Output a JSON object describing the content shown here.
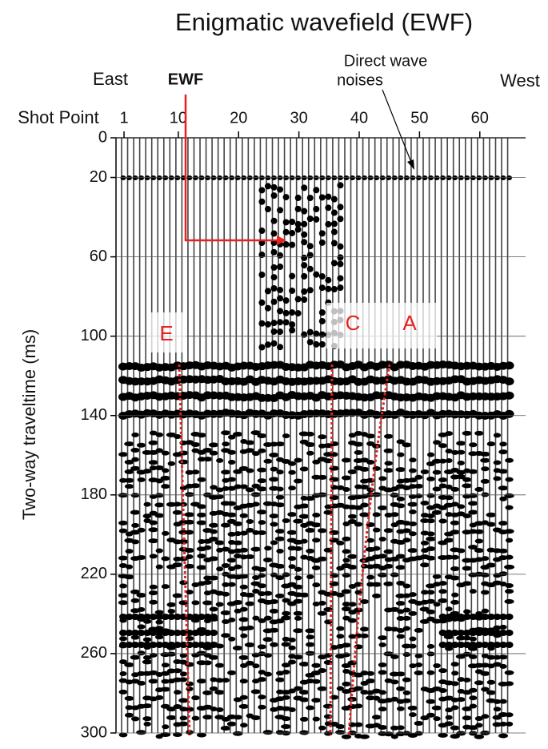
{
  "chart_data": {
    "type": "seismic",
    "title": "Enigmatic wavefield (EWF)",
    "x_label": "Shot Point",
    "y_label": "Two-way traveltime (ms)",
    "xlim": [
      0,
      66
    ],
    "xticks": [
      1,
      10,
      20,
      30,
      40,
      50,
      60
    ],
    "ylim": [
      0,
      300
    ],
    "yticks": [
      0,
      20,
      60,
      100,
      140,
      180,
      220,
      260,
      300
    ],
    "y_inverted": true,
    "left_direction": "East",
    "right_direction": "West",
    "annotations": {
      "ewf": "EWF",
      "direct_wave": [
        "Direct wave",
        "noises"
      ],
      "zones": [
        "E",
        "C",
        "A"
      ]
    },
    "annotation_color": "#e8201e"
  }
}
